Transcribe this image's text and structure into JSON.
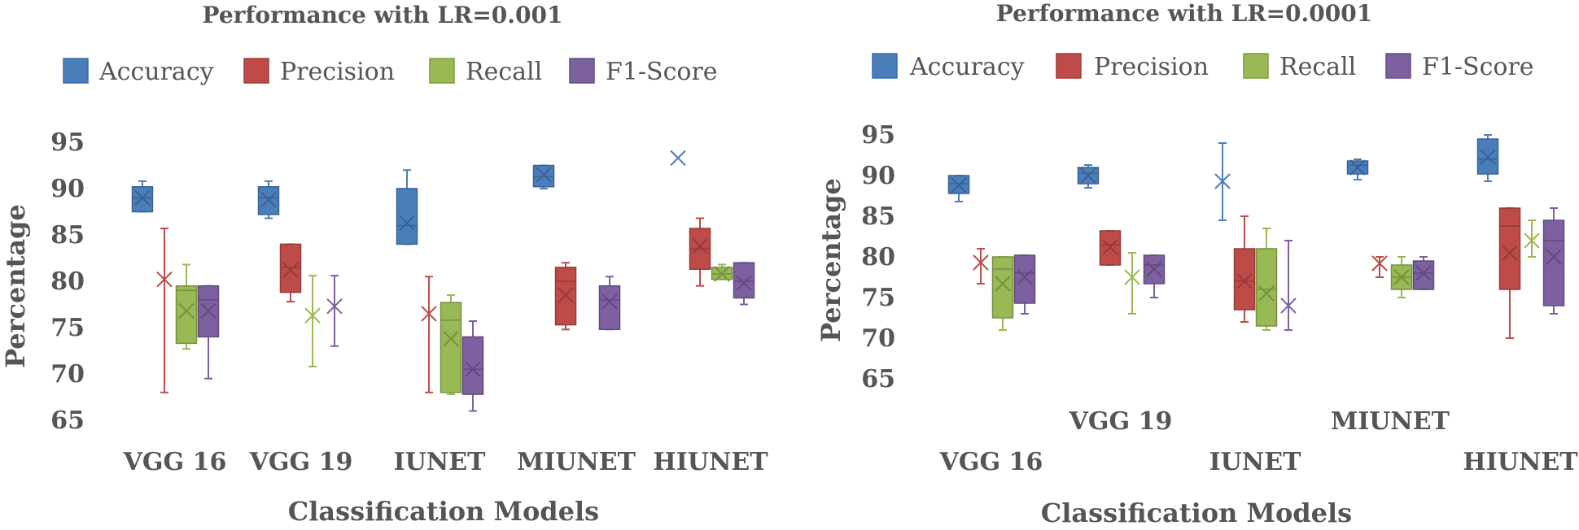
{
  "chart_data": [
    {
      "type": "box",
      "title": "Performance with LR=0.001",
      "xlabel": "Classification Models",
      "ylabel": "Percentage",
      "ylim": [
        65,
        95
      ],
      "yticks": [
        "95",
        "90",
        "85",
        "80",
        "75",
        "70",
        "65"
      ],
      "grid": false,
      "legend_position": "top",
      "categories": [
        "VGG 16",
        "VGG 19",
        "IUNET",
        "MIUNET",
        "HIUNET"
      ],
      "series": [
        {
          "name": "Accuracy",
          "color": "#4a7ebb",
          "boxes": [
            {
              "min": 87.5,
              "q1": 87.5,
              "median": 89,
              "q3": 90.2,
              "max": 90.8,
              "mean": 89
            },
            {
              "min": 86.8,
              "q1": 87.2,
              "median": 89,
              "q3": 90.2,
              "max": 90.8,
              "mean": 88.8
            },
            {
              "min": 84,
              "q1": 84,
              "median": 86,
              "q3": 90,
              "max": 92,
              "mean": 86.3
            },
            {
              "min": 90,
              "q1": 90.2,
              "median": 91.3,
              "q3": 92.5,
              "max": 92.5,
              "mean": 91.5
            },
            {
              "min": null,
              "q1": null,
              "median": null,
              "q3": null,
              "max": null,
              "mean": 93.3
            }
          ]
        },
        {
          "name": "Precision",
          "color": "#be4b48",
          "boxes": [
            {
              "min": 68,
              "q1": null,
              "median": null,
              "q3": null,
              "max": 85.7,
              "mean": 80.2
            },
            {
              "min": 77.8,
              "q1": 78.8,
              "median": 81.5,
              "q3": 84,
              "max": 84,
              "mean": 81.2
            },
            {
              "min": 68,
              "q1": null,
              "median": null,
              "q3": null,
              "max": 80.5,
              "mean": 76.5
            },
            {
              "min": 74.8,
              "q1": 75.3,
              "median": 80,
              "q3": 81.5,
              "max": 82,
              "mean": 78.5
            },
            {
              "min": 79.5,
              "q1": 81.3,
              "median": 83.5,
              "q3": 85.7,
              "max": 86.8,
              "mean": 83.8
            }
          ]
        },
        {
          "name": "Recall",
          "color": "#98b954",
          "boxes": [
            {
              "min": 72.7,
              "q1": 73.3,
              "median": 79,
              "q3": 79.5,
              "max": 81.8,
              "mean": 76.8
            },
            {
              "min": 70.8,
              "q1": null,
              "median": null,
              "q3": null,
              "max": 80.6,
              "mean": 76.3
            },
            {
              "min": 67.8,
              "q1": 68,
              "median": 75.8,
              "q3": 77.7,
              "max": 78.5,
              "mean": 73.8
            },
            {
              "min": null,
              "q1": null,
              "median": null,
              "q3": null,
              "max": null,
              "mean": null
            },
            {
              "min": 80.2,
              "q1": 80.2,
              "median": 80.8,
              "q3": 81.5,
              "max": 81.8,
              "mean": 80.8
            }
          ]
        },
        {
          "name": "F1-Score",
          "color": "#7d60a0",
          "boxes": [
            {
              "min": 69.5,
              "q1": 74,
              "median": 78,
              "q3": 79.5,
              "max": 79.5,
              "mean": 76.8
            },
            {
              "min": 73,
              "q1": null,
              "median": null,
              "q3": null,
              "max": 80.6,
              "mean": 77.3
            },
            {
              "min": 66,
              "q1": 67.8,
              "median": 70.5,
              "q3": 74,
              "max": 75.7,
              "mean": 70.5
            },
            {
              "min": 74.8,
              "q1": 74.8,
              "median": 78,
              "q3": 79.5,
              "max": 80.5,
              "mean": 77.8
            },
            {
              "min": 77.5,
              "q1": 78.2,
              "median": 80,
              "q3": 82,
              "max": 82,
              "mean": 79.8
            }
          ]
        }
      ]
    },
    {
      "type": "box",
      "title": "Performance with LR=0.0001",
      "xlabel": "Classification Models",
      "ylabel": "Percentage",
      "ylim": [
        65,
        95
      ],
      "yticks": [
        "95",
        "90",
        "85",
        "80",
        "75",
        "70",
        "65"
      ],
      "grid": false,
      "legend_position": "top",
      "categories": [
        "VGG 16",
        "VGG 19",
        "IUNET",
        "MIUNET",
        "HIUNET"
      ],
      "series": [
        {
          "name": "Accuracy",
          "color": "#4a7ebb",
          "boxes": [
            {
              "min": 86.8,
              "q1": 87.8,
              "median": 89,
              "q3": 90,
              "max": 90,
              "mean": 88.8
            },
            {
              "min": 88.5,
              "q1": 89,
              "median": 90.3,
              "q3": 91,
              "max": 91.3,
              "mean": 90
            },
            {
              "min": 84.5,
              "q1": null,
              "median": null,
              "q3": null,
              "max": 94,
              "mean": 89.3
            },
            {
              "min": 89.5,
              "q1": 90.2,
              "median": 91.3,
              "q3": 91.8,
              "max": 92,
              "mean": 91
            },
            {
              "min": 89.3,
              "q1": 90.2,
              "median": 92,
              "q3": 94.5,
              "max": 95,
              "mean": 92.3
            }
          ]
        },
        {
          "name": "Precision",
          "color": "#be4b48",
          "boxes": [
            {
              "min": 76.7,
              "q1": null,
              "median": null,
              "q3": null,
              "max": 81,
              "mean": 79.3
            },
            {
              "min": 79,
              "q1": 79,
              "median": 81.5,
              "q3": 83.2,
              "max": 83.2,
              "mean": 81.2
            },
            {
              "min": 72,
              "q1": 73.5,
              "median": 77,
              "q3": 81,
              "max": 85,
              "mean": 77
            },
            {
              "min": 77.5,
              "q1": null,
              "median": null,
              "q3": null,
              "max": 80,
              "mean": 79.2
            },
            {
              "min": 70,
              "q1": 76,
              "median": 83.8,
              "q3": 86,
              "max": 86,
              "mean": 80.5
            }
          ]
        },
        {
          "name": "Recall",
          "color": "#98b954",
          "boxes": [
            {
              "min": 71,
              "q1": 72.5,
              "median": 78.5,
              "q3": 80,
              "max": 80,
              "mean": 76.7
            },
            {
              "min": 73,
              "q1": null,
              "median": null,
              "q3": null,
              "max": 80.5,
              "mean": 77.5
            },
            {
              "min": 71,
              "q1": 71.5,
              "median": 76,
              "q3": 81,
              "max": 83.5,
              "mean": 75.5
            },
            {
              "min": 75,
              "q1": 76,
              "median": 77.5,
              "q3": 79,
              "max": 80,
              "mean": 77.5
            },
            {
              "min": 80,
              "q1": null,
              "median": null,
              "q3": null,
              "max": 84.5,
              "mean": 82
            }
          ]
        },
        {
          "name": "F1-Score",
          "color": "#7d60a0",
          "boxes": [
            {
              "min": 73,
              "q1": 74.3,
              "median": 78,
              "q3": 80.2,
              "max": 80.2,
              "mean": 77.5
            },
            {
              "min": 75,
              "q1": 76.7,
              "median": 79,
              "q3": 80.2,
              "max": 80.2,
              "mean": 78.5
            },
            {
              "min": 71,
              "q1": null,
              "median": null,
              "q3": null,
              "max": 82,
              "mean": 74
            },
            {
              "min": 76,
              "q1": 76,
              "median": 78,
              "q3": 79.5,
              "max": 80,
              "mean": 78
            },
            {
              "min": 73,
              "q1": 74,
              "median": 82,
              "q3": 84.5,
              "max": 86,
              "mean": 80
            }
          ]
        }
      ]
    }
  ]
}
